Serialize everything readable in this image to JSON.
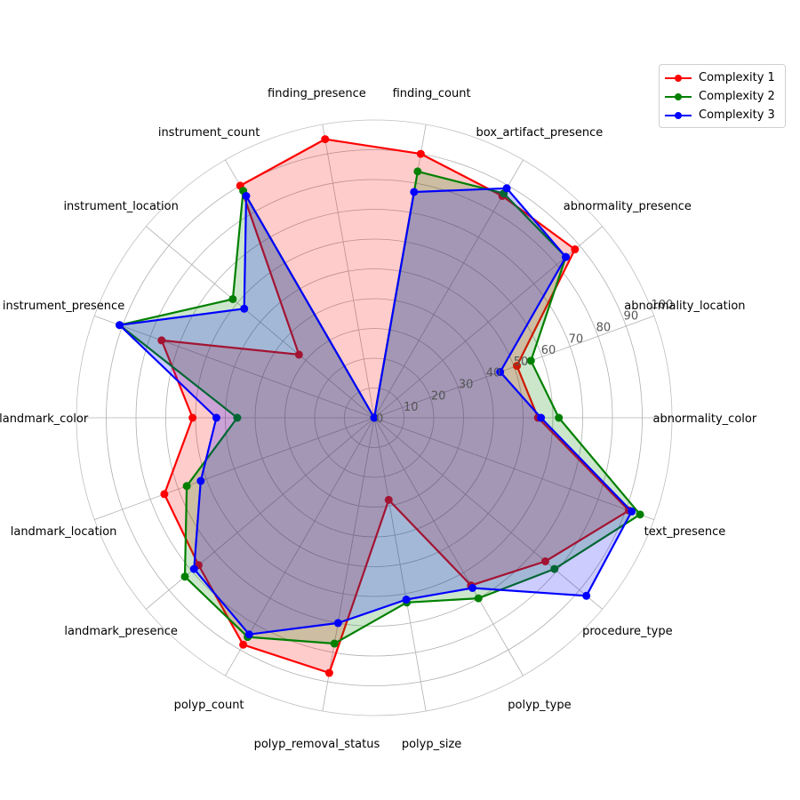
{
  "chart_data": {
    "type": "radar",
    "title": "",
    "categories": [
      "abnormality_color",
      "abnormality_location",
      "abnormality_presence",
      "box_artifact_presence",
      "finding_count",
      "finding_presence",
      "instrument_count",
      "instrument_location",
      "instrument_presence",
      "landmark_color",
      "landmark_location",
      "landmark_presence",
      "polyp_count",
      "polyp_removal_status",
      "polyp_size",
      "polyp_type",
      "procedure_type",
      "text_presence"
    ],
    "rlim": [
      0,
      100
    ],
    "r_ticks": [
      "0",
      "10",
      "20",
      "30",
      "40",
      "50",
      "60",
      "70",
      "80",
      "90",
      "100"
    ],
    "grid": true,
    "legend_position": "top-right",
    "series": [
      {
        "name": "Complexity 1",
        "color": "#ff0000",
        "values": [
          55,
          51,
          88,
          86,
          90,
          95,
          90,
          33,
          76,
          61,
          75,
          77,
          88,
          87,
          28,
          65,
          75,
          91
        ]
      },
      {
        "name": "Complexity 2",
        "color": "#008000",
        "values": [
          62,
          56,
          84,
          87,
          84,
          0,
          88,
          62,
          91,
          46,
          67,
          83,
          85,
          77,
          63,
          70,
          79,
          95
        ]
      },
      {
        "name": "Complexity 3",
        "color": "#0000ff",
        "values": [
          56,
          45,
          84,
          89,
          77,
          0,
          86,
          57,
          91,
          53,
          62,
          79,
          84,
          70,
          62,
          66,
          93,
          92
        ]
      }
    ]
  }
}
